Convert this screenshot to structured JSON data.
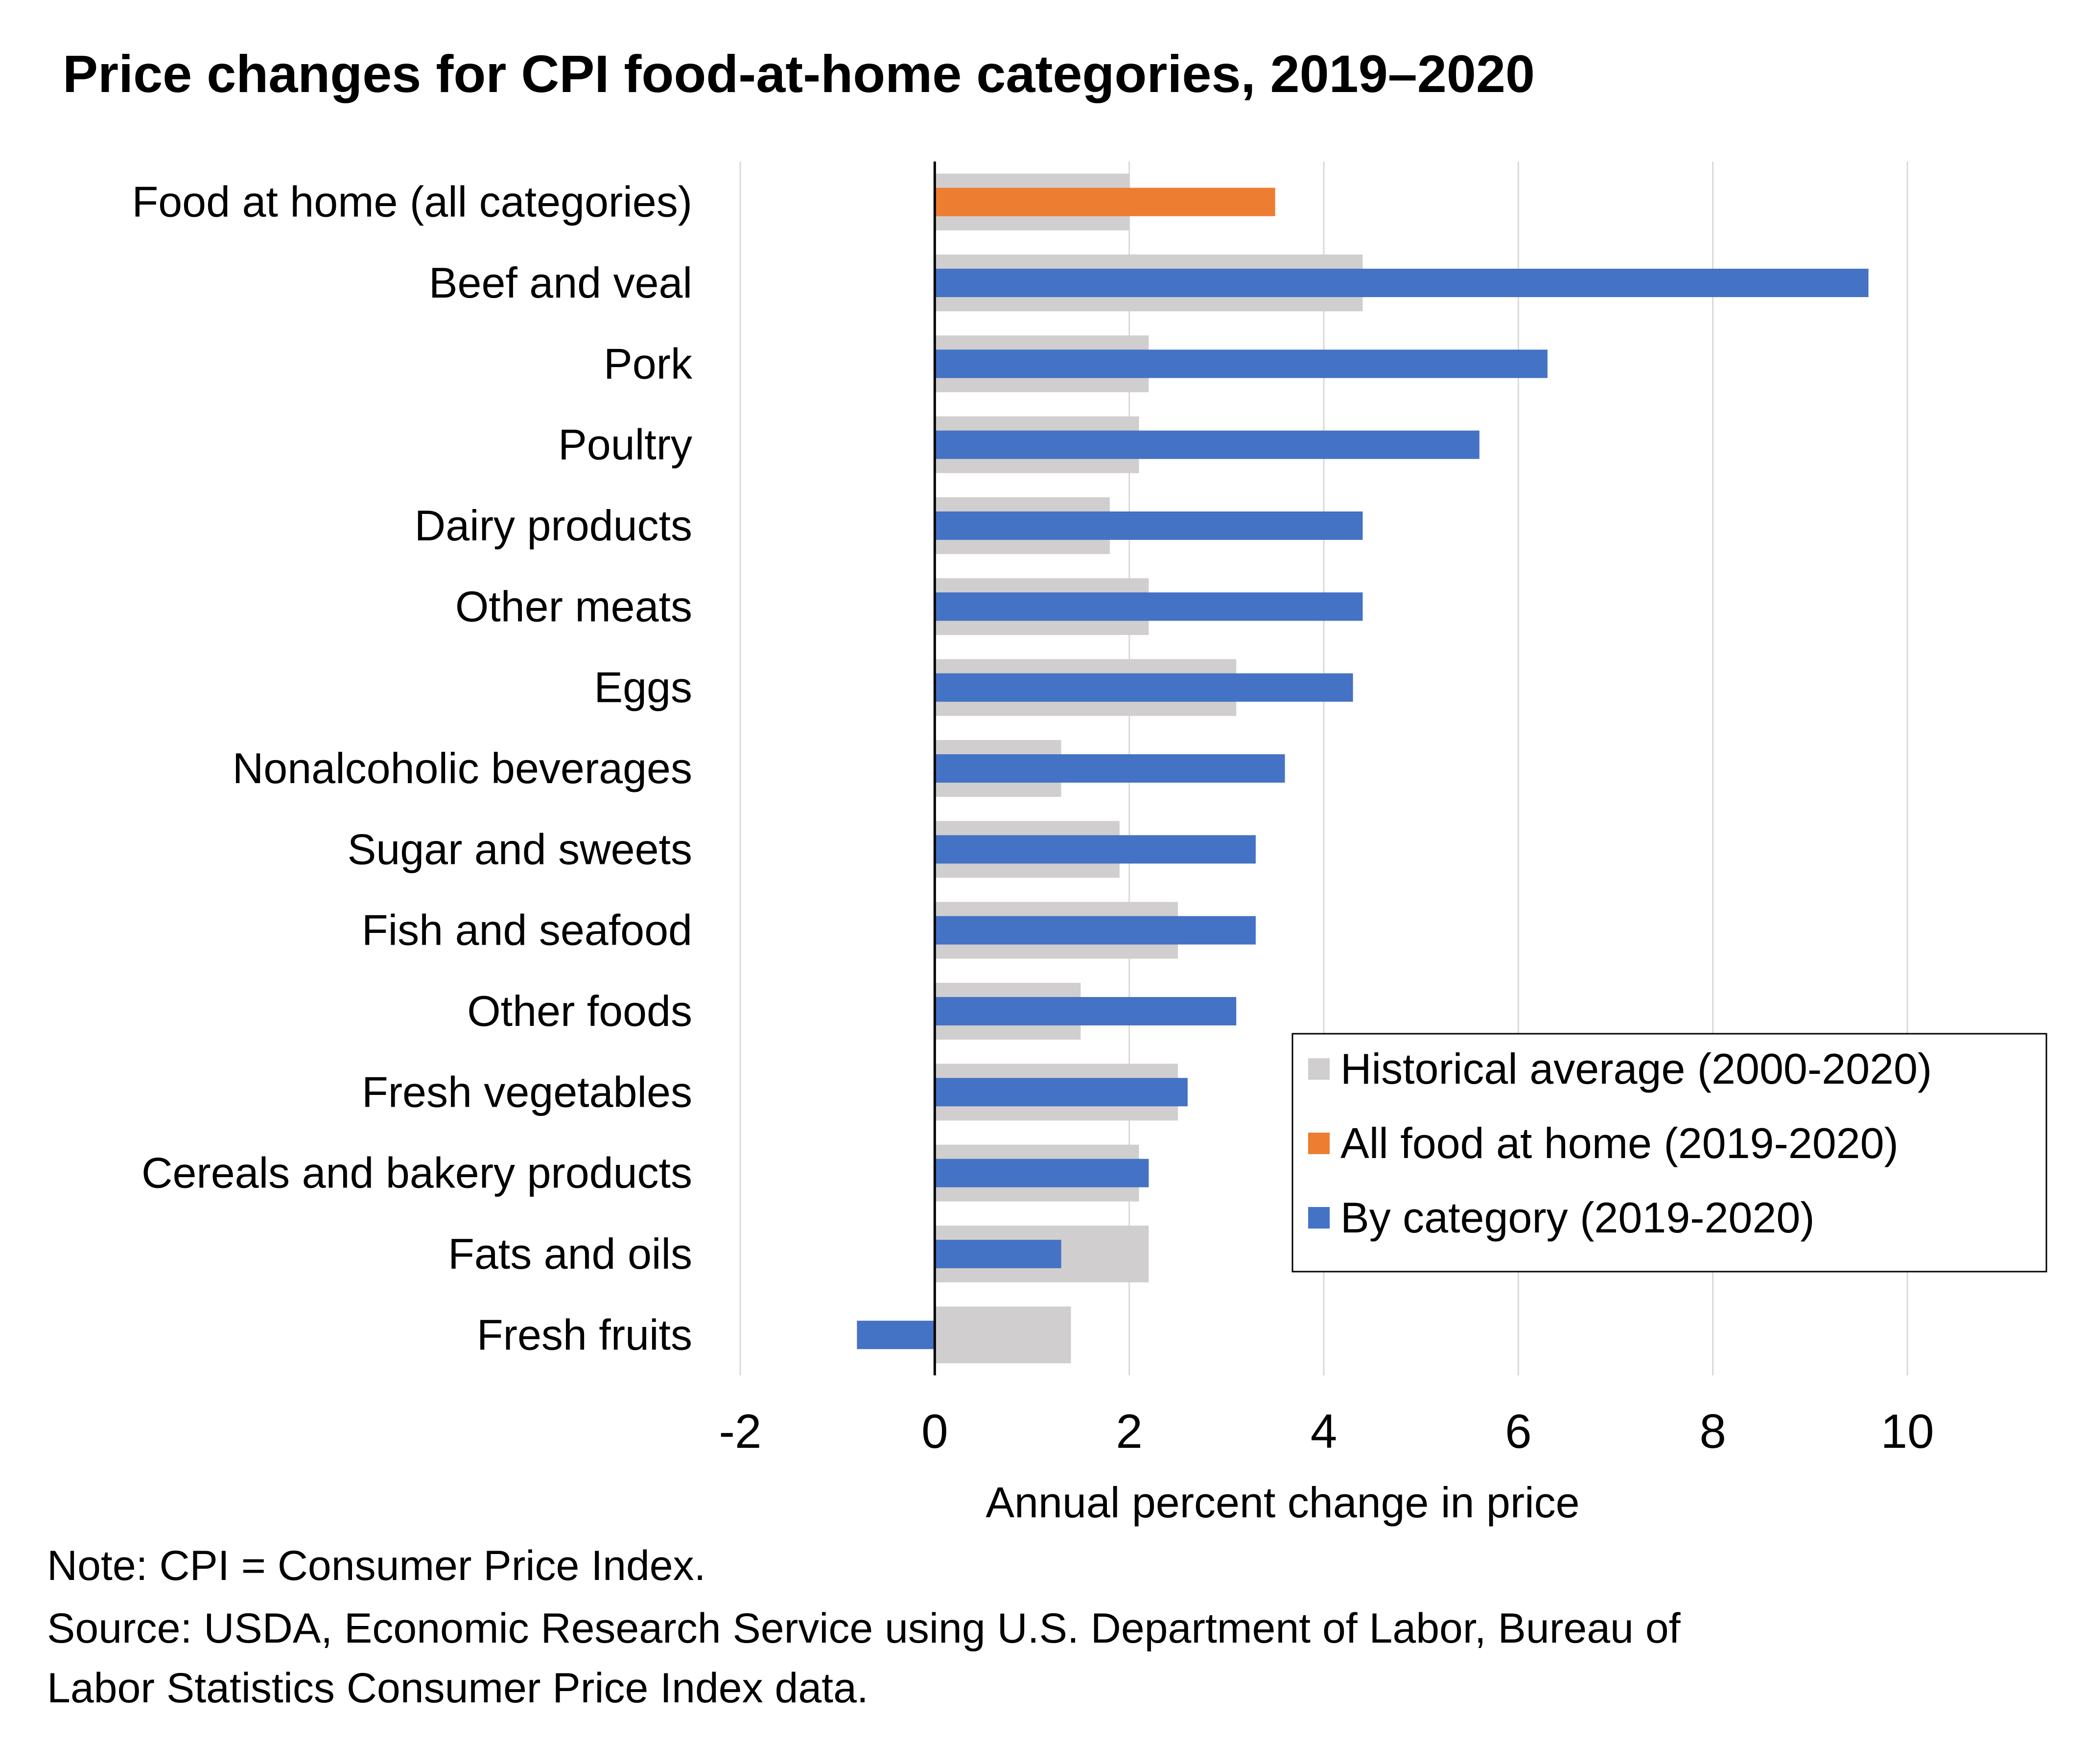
{
  "chart_data": {
    "type": "bar",
    "orientation": "horizontal",
    "title": "Price changes for CPI food-at-home categories, 2019–2020",
    "xlabel": "Annual percent change in price",
    "ylabel": "",
    "xlim": [
      -2,
      10
    ],
    "xticks": [
      -2,
      0,
      2,
      4,
      6,
      8,
      10
    ],
    "grid": "vertical",
    "legend_position": "bottom-right",
    "categories": [
      "Food at home (all categories)",
      "Beef and veal",
      "Pork",
      "Poultry",
      "Dairy products",
      "Other meats",
      "Eggs",
      "Nonalcoholic beverages",
      "Sugar and sweets",
      "Fish and seafood",
      "Other foods",
      "Fresh vegetables",
      "Cereals and bakery products",
      "Fats and oils",
      "Fresh fruits"
    ],
    "series": [
      {
        "name": "Historical average (2000-2020)",
        "color": "#d0cece",
        "values": [
          2.0,
          4.4,
          2.2,
          2.1,
          1.8,
          2.2,
          3.1,
          1.3,
          1.9,
          2.5,
          1.5,
          2.5,
          2.1,
          2.2,
          1.4
        ]
      },
      {
        "name": "All food at home (2019-2020)",
        "color": "#ed7d31",
        "values": [
          3.5,
          null,
          null,
          null,
          null,
          null,
          null,
          null,
          null,
          null,
          null,
          null,
          null,
          null,
          null
        ]
      },
      {
        "name": "By category (2019-2020)",
        "color": "#4472c4",
        "values": [
          null,
          9.6,
          6.3,
          5.6,
          4.4,
          4.4,
          4.3,
          3.6,
          3.3,
          3.3,
          3.1,
          2.6,
          2.2,
          1.3,
          -0.8
        ]
      }
    ]
  },
  "notes": {
    "note": "Note: CPI = Consumer Price Index.",
    "source_line1": "Source: USDA, Economic Research Service using U.S. Department of Labor, Bureau of",
    "source_line2": "Labor Statistics Consumer Price Index data."
  }
}
